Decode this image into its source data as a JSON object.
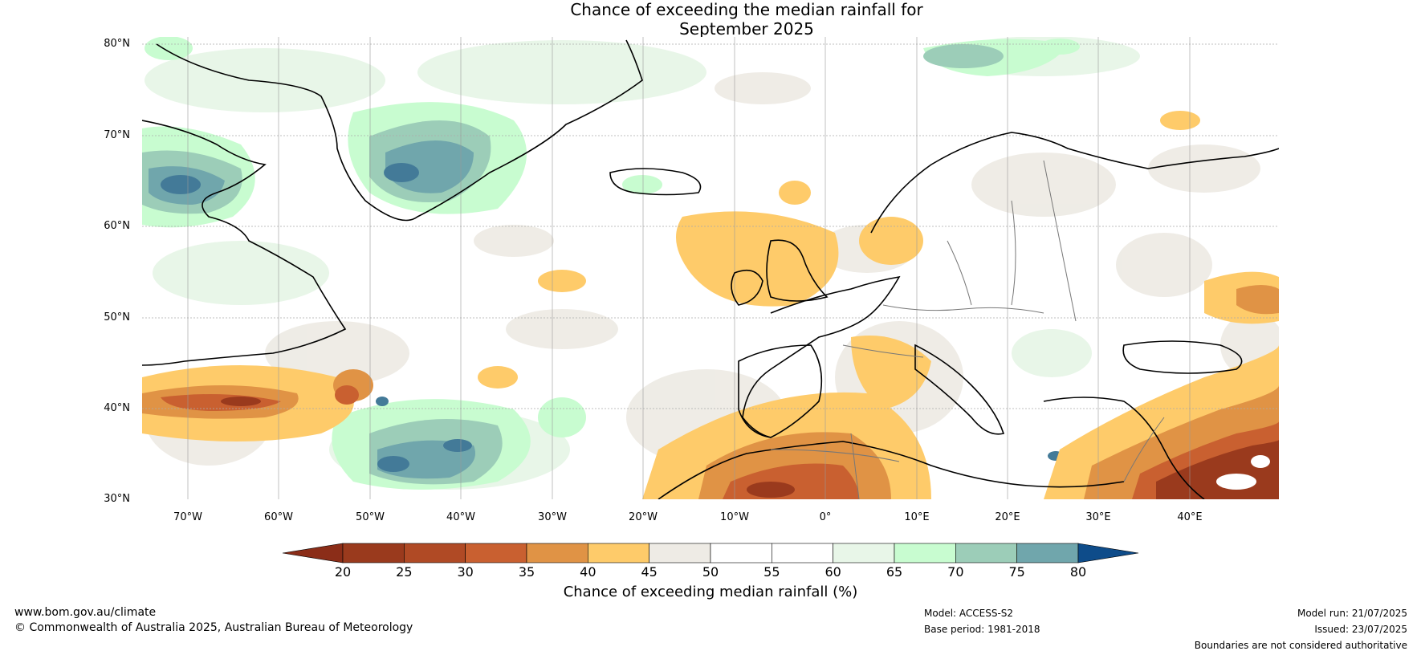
{
  "title_line1": "Chance of exceeding the median rainfall for",
  "title_line2": "September 2025",
  "lat_labels": [
    "80°N",
    "70°N",
    "60°N",
    "50°N",
    "40°N",
    "30°N"
  ],
  "lon_labels": [
    "70°W",
    "60°W",
    "50°W",
    "40°W",
    "30°W",
    "20°W",
    "10°W",
    "0°",
    "10°E",
    "20°E",
    "30°E",
    "40°E"
  ],
  "colorbar": {
    "ticks": [
      "20",
      "25",
      "30",
      "35",
      "40",
      "45",
      "50",
      "55",
      "60",
      "65",
      "70",
      "75",
      "80"
    ],
    "colors": [
      "#9a3a1d",
      "#b04a25",
      "#c96030",
      "#e09345",
      "#fecb6a",
      "#eeebe5",
      "#ffffff",
      "#ffffff",
      "#e8f6e8",
      "#c8fcd0",
      "#9ccdb8",
      "#70a6ac",
      "#437a98"
    ],
    "under_color": "#8b2d18",
    "over_color": "#0e4c8a",
    "label": "Chance of exceeding median rainfall (%)"
  },
  "footer": {
    "website": "www.bom.gov.au/climate",
    "copyright": "© Commonwealth of Australia 2025, Australian Bureau of Meteorology",
    "model": "Model: ACCESS-S2",
    "base_period": "Base period: 1981-2018",
    "model_run": "Model run: 21/07/2025",
    "issued": "Issued: 23/07/2025",
    "disclaimer": "Boundaries are not considered authoritative"
  }
}
